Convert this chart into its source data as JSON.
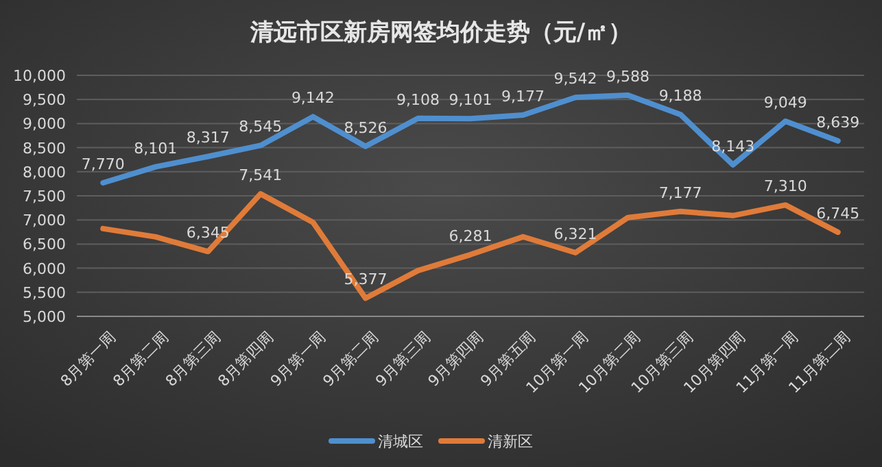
{
  "chart_data": {
    "type": "line",
    "title": "清远市区新房网签均价走势（元/㎡）",
    "categories": [
      "8月第一周",
      "8月第二周",
      "8月第三周",
      "8月第四周",
      "9月第一周",
      "9月第二周",
      "9月第三周",
      "9月第四周",
      "9月第五周",
      "10月第一周",
      "10月第二周",
      "10月第三周",
      "10月第四周",
      "11月第一周",
      "11月第二周"
    ],
    "series": [
      {
        "name": "清城区",
        "color": "#4f8fcf",
        "values": [
          7770,
          8101,
          8317,
          8545,
          9142,
          8526,
          9108,
          9101,
          9177,
          9542,
          9588,
          9188,
          8143,
          9049,
          8639
        ],
        "value_labels": [
          "7,770",
          "8,101",
          "8,317",
          "8,545",
          "9,142",
          "8,526",
          "9,108",
          "9,101",
          "9,177",
          "9,542",
          "9,588",
          "9,188",
          "8,143",
          "9,049",
          "8,639"
        ]
      },
      {
        "name": "清新区",
        "color": "#e07b39",
        "values": [
          6820,
          6650,
          6345,
          7541,
          6950,
          5377,
          5950,
          6281,
          6650,
          6321,
          7050,
          7177,
          7090,
          7310,
          6745
        ],
        "value_labels": [
          null,
          null,
          "6,345",
          "7,541",
          null,
          "5,377",
          null,
          "6,281",
          null,
          "6,321",
          null,
          "7,177",
          null,
          "7,310",
          "6,745"
        ]
      }
    ],
    "ylim": [
      5000,
      10000
    ],
    "yticks": [
      {
        "value": 5000,
        "label": "5,000"
      },
      {
        "value": 5500,
        "label": "5,500"
      },
      {
        "value": 6000,
        "label": "6,000"
      },
      {
        "value": 6500,
        "label": "6,500"
      },
      {
        "value": 7000,
        "label": "7,000"
      },
      {
        "value": 7500,
        "label": "7,500"
      },
      {
        "value": 8000,
        "label": "8,000"
      },
      {
        "value": 8500,
        "label": "8,500"
      },
      {
        "value": 9000,
        "label": "9,000"
      },
      {
        "value": 9500,
        "label": "9,500"
      },
      {
        "value": 10000,
        "label": "10,000"
      }
    ],
    "grid": "y",
    "legend": "bottom",
    "marker": "none",
    "line_style": "solid"
  }
}
